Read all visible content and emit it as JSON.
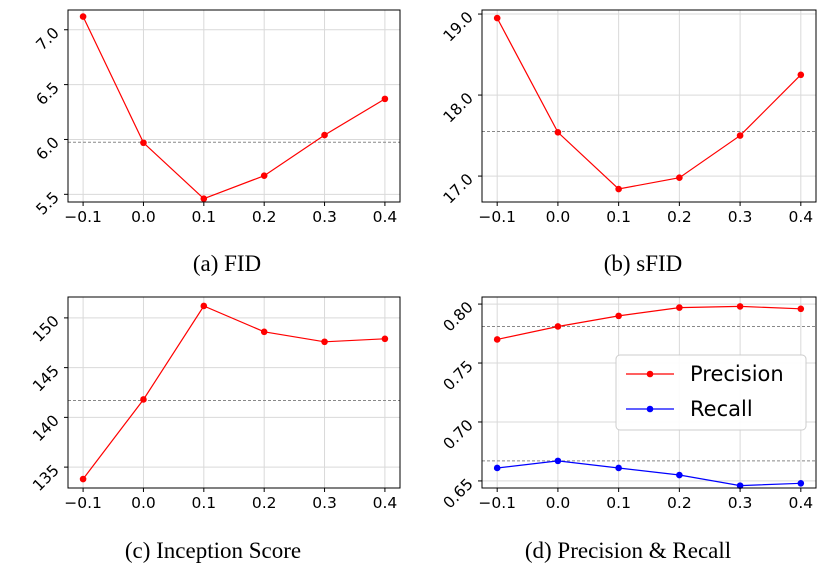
{
  "chart_data": [
    {
      "type": "line",
      "caption": "(a) FID",
      "x": [
        -0.1,
        0.0,
        0.1,
        0.2,
        0.3,
        0.4
      ],
      "x_ticks": [
        "−0.1",
        "0.0",
        "0.1",
        "0.2",
        "0.3",
        "0.4"
      ],
      "y_ticks": [
        5.5,
        6.0,
        6.5,
        7.0
      ],
      "y_tick_labels": [
        "5.5",
        "6.0",
        "6.5",
        "7.0"
      ],
      "xlim": [
        -0.125,
        0.425
      ],
      "ylim": [
        5.43,
        7.18
      ],
      "grid": true,
      "series": [
        {
          "color": "#ff0000",
          "values": [
            7.12,
            5.97,
            5.46,
            5.67,
            6.04,
            6.37
          ]
        }
      ],
      "reference_lines": [
        {
          "y": 5.975,
          "color": "#888888",
          "style": "dashed"
        }
      ]
    },
    {
      "type": "line",
      "caption": "(b) sFID",
      "x": [
        -0.1,
        0.0,
        0.1,
        0.2,
        0.3,
        0.4
      ],
      "x_ticks": [
        "−0.1",
        "0.0",
        "0.1",
        "0.2",
        "0.3",
        "0.4"
      ],
      "y_ticks": [
        17.0,
        18.0,
        19.0
      ],
      "y_tick_labels": [
        "17.0",
        "18.0",
        "19.0"
      ],
      "xlim": [
        -0.125,
        0.425
      ],
      "ylim": [
        16.68,
        19.05
      ],
      "grid": true,
      "series": [
        {
          "color": "#ff0000",
          "values": [
            18.95,
            17.54,
            16.84,
            16.98,
            17.5,
            18.25
          ]
        }
      ],
      "reference_lines": [
        {
          "y": 17.55,
          "color": "#888888",
          "style": "dashed"
        }
      ]
    },
    {
      "type": "line",
      "caption": "(c) Inception Score",
      "x": [
        -0.1,
        0.0,
        0.1,
        0.2,
        0.3,
        0.4
      ],
      "x_ticks": [
        "−0.1",
        "0.0",
        "0.1",
        "0.2",
        "0.3",
        "0.4"
      ],
      "y_ticks": [
        135,
        140,
        145,
        150
      ],
      "y_tick_labels": [
        "135",
        "140",
        "145",
        "150"
      ],
      "xlim": [
        -0.125,
        0.425
      ],
      "ylim": [
        132.9,
        152.1
      ],
      "grid": true,
      "series": [
        {
          "color": "#ff0000",
          "values": [
            133.8,
            141.8,
            151.2,
            148.6,
            147.6,
            147.9
          ]
        }
      ],
      "reference_lines": [
        {
          "y": 141.7,
          "color": "#888888",
          "style": "dashed"
        }
      ]
    },
    {
      "type": "line",
      "caption": "(d) Precision & Recall",
      "x": [
        -0.1,
        0.0,
        0.1,
        0.2,
        0.3,
        0.4
      ],
      "x_ticks": [
        "−0.1",
        "0.0",
        "0.1",
        "0.2",
        "0.3",
        "0.4"
      ],
      "y_ticks": [
        0.65,
        0.7,
        0.75,
        0.8
      ],
      "y_tick_labels": [
        "0.65",
        "0.70",
        "0.75",
        "0.80"
      ],
      "xlim": [
        -0.125,
        0.425
      ],
      "ylim": [
        0.644,
        0.806
      ],
      "grid": true,
      "legend_position": "center-right",
      "series": [
        {
          "name": "Precision",
          "color": "#ff0000",
          "values": [
            0.77,
            0.781,
            0.79,
            0.797,
            0.798,
            0.796
          ]
        },
        {
          "name": "Recall",
          "color": "#0000ff",
          "values": [
            0.661,
            0.667,
            0.661,
            0.655,
            0.646,
            0.648
          ]
        }
      ],
      "reference_lines": [
        {
          "y": 0.781,
          "color": "#888888",
          "style": "dashed"
        },
        {
          "y": 0.667,
          "color": "#888888",
          "style": "dashed"
        }
      ]
    }
  ]
}
